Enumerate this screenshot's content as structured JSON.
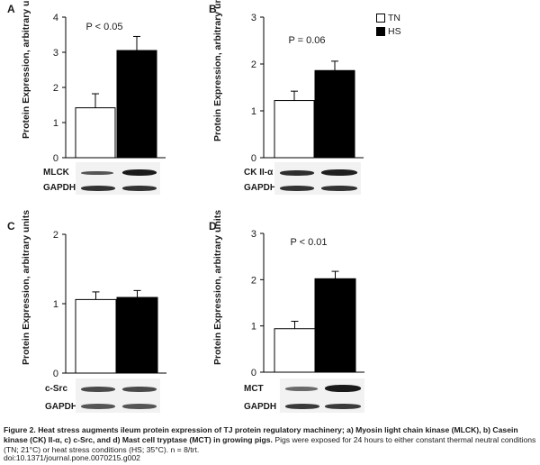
{
  "legend": {
    "items": [
      {
        "name": "TN",
        "color": "#ffffff"
      },
      {
        "name": "HS",
        "color": "#000000"
      }
    ]
  },
  "chart_data": [
    {
      "type": "bar",
      "panel": "A",
      "categories": [
        "TN",
        "HS"
      ],
      "values": [
        1.42,
        3.05
      ],
      "errors": [
        0.4,
        0.4
      ],
      "ylabel": "Protein Expression, arbitrary units",
      "ylim": [
        0,
        4
      ],
      "yticks": [
        "0",
        "1",
        "2",
        "3",
        "4"
      ],
      "annotation": "P < 0.05",
      "blot_labels": [
        "MLCK",
        "GAPDH"
      ]
    },
    {
      "type": "bar",
      "panel": "B",
      "categories": [
        "TN",
        "HS"
      ],
      "values": [
        1.22,
        1.86
      ],
      "errors": [
        0.2,
        0.2
      ],
      "ylabel": "Protein Expression, arbitrary units",
      "ylim": [
        0,
        3
      ],
      "yticks": [
        "0",
        "1",
        "2",
        "3"
      ],
      "annotation": "P = 0.06",
      "blot_labels": [
        "CK II-α",
        "GAPDH"
      ]
    },
    {
      "type": "bar",
      "panel": "C",
      "categories": [
        "TN",
        "HS"
      ],
      "values": [
        1.06,
        1.09
      ],
      "errors": [
        0.11,
        0.1
      ],
      "ylabel": "Protein Expression, arbitrary units",
      "ylim": [
        0,
        2
      ],
      "yticks": [
        "0",
        "1",
        "2"
      ],
      "annotation": "",
      "blot_labels": [
        "c-Src",
        "GAPDH"
      ]
    },
    {
      "type": "bar",
      "panel": "D",
      "categories": [
        "TN",
        "HS"
      ],
      "values": [
        0.94,
        2.02
      ],
      "errors": [
        0.16,
        0.16
      ],
      "ylabel": "Protein Expression, arbitrary units",
      "ylim": [
        0,
        3
      ],
      "yticks": [
        "0",
        "1",
        "2",
        "3"
      ],
      "annotation": "P < 0.01",
      "blot_labels": [
        "MCT",
        "GAPDH"
      ]
    }
  ],
  "caption": {
    "bold": "Figure 2. Heat stress augments ileum protein expression of TJ protein regulatory machinery; a) Myosin light chain kinase (MLCK), b) Casein kinase (CK) II-α, c) c-Src, and d) Mast cell tryptase (MCT) in growing pigs.",
    "normal": " Pigs were exposed for 24 hours to either constant thermal neutral conditions (TN; 21°C) or heat stress conditions (HS; 35°C). n = 8/trt.",
    "doi": "doi:10.1371/journal.pone.0070215.g002"
  }
}
